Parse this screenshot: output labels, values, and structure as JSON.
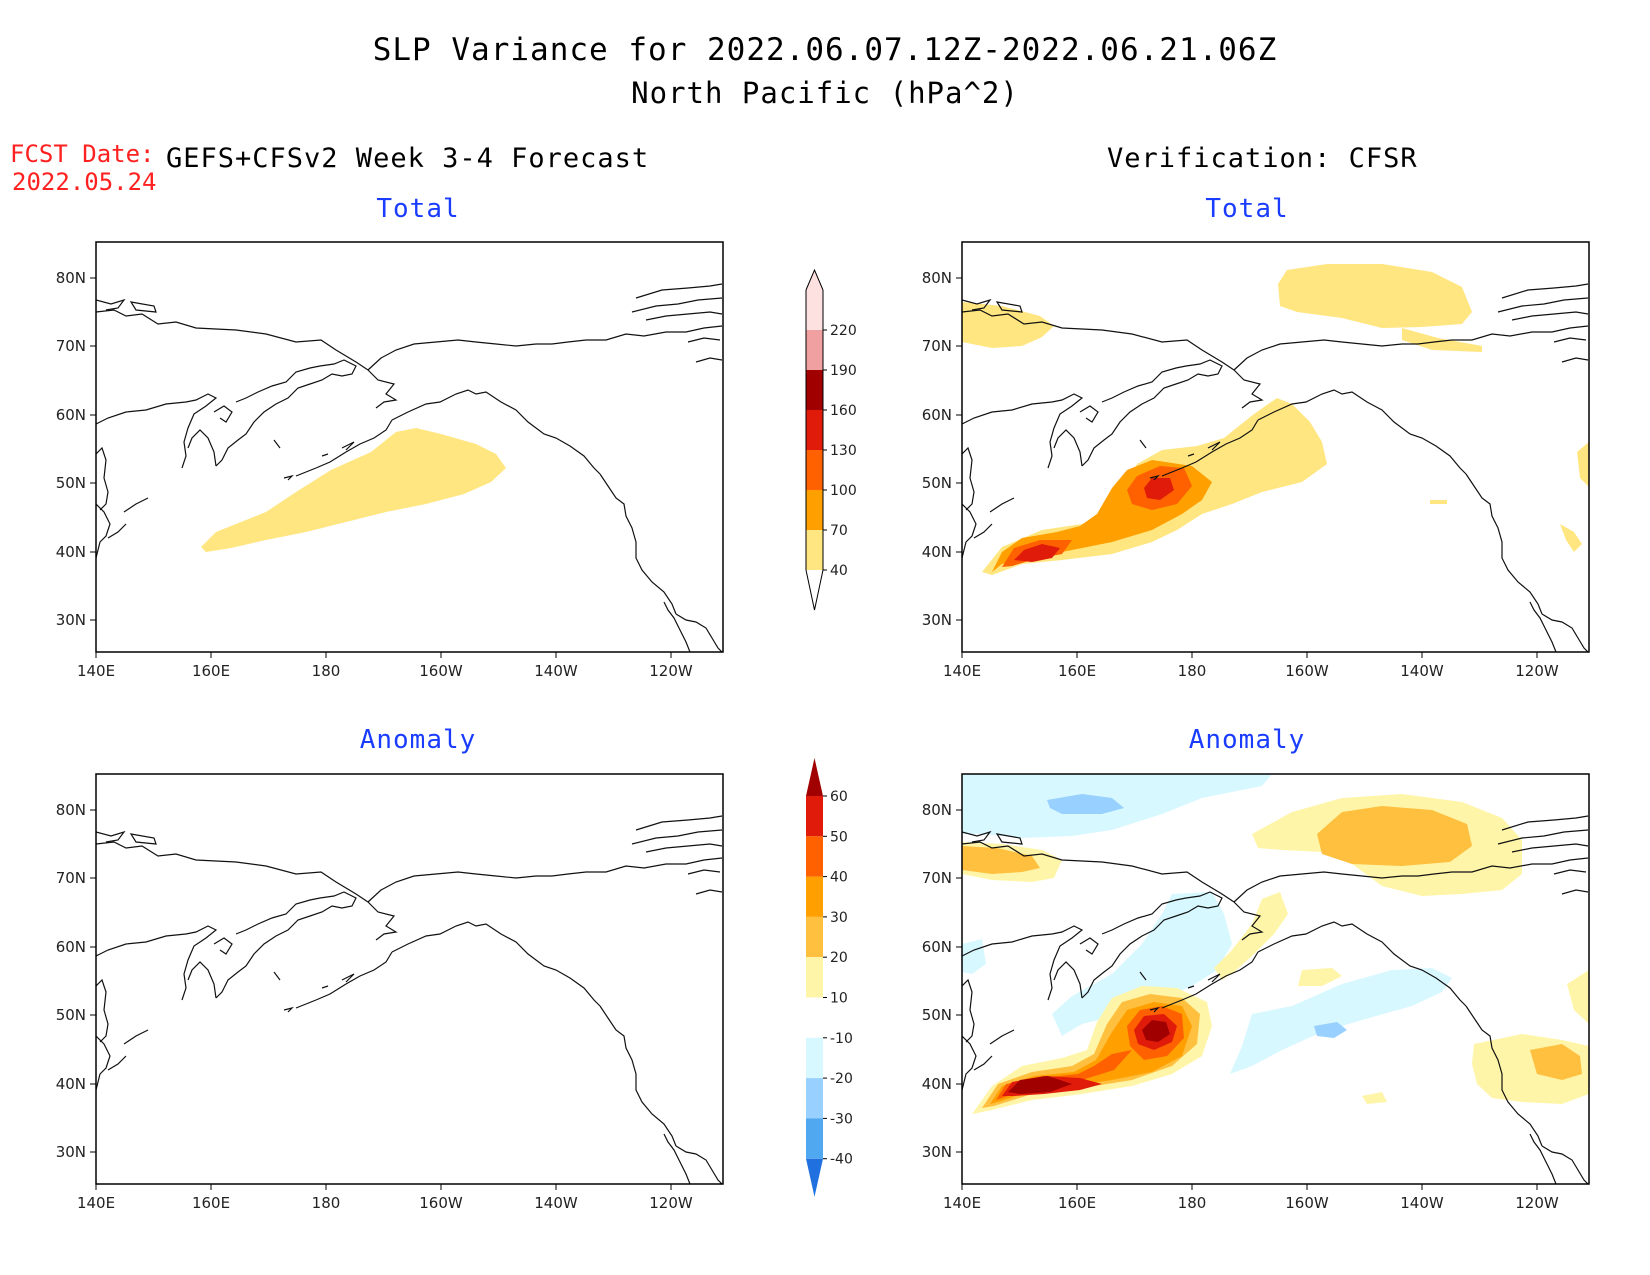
{
  "header": {
    "title": "SLP Variance for 2022.06.07.12Z-2022.06.21.06Z",
    "subtitle": "North Pacific (hPa^2)",
    "fcst_label": "FCST Date:",
    "fcst_value": "2022.05.24",
    "left_column": "GEFS+CFSv2 Week 3-4 Forecast",
    "right_column": "Verification: CFSR"
  },
  "panels": [
    {
      "id": "forecast-total",
      "title": "Total"
    },
    {
      "id": "verification-total",
      "title": "Total"
    },
    {
      "id": "forecast-anomaly",
      "title": "Anomaly"
    },
    {
      "id": "verification-anomaly",
      "title": "Anomaly"
    }
  ],
  "axes": {
    "lon_labels": [
      "140E",
      "160E",
      "180",
      "160W",
      "140W",
      "120W"
    ],
    "lat_labels": [
      "80N",
      "70N",
      "60N",
      "50N",
      "40N",
      "30N"
    ]
  },
  "colorbars": {
    "total": {
      "levels": [
        "40",
        "70",
        "100",
        "130",
        "160",
        "190",
        "220"
      ],
      "colors": [
        "#ffe680",
        "#ffa000",
        "#ff6000",
        "#e01b0a",
        "#a00000",
        "#f0a0a0",
        "#fde0e0"
      ]
    },
    "anomaly": {
      "levels": [
        "60",
        "50",
        "40",
        "30",
        "20",
        "10",
        "-10",
        "-20",
        "-30",
        "-40"
      ],
      "colors": [
        "#a00000",
        "#e01b0a",
        "#ff6000",
        "#ffa000",
        "#ffc040",
        "#fff5a8",
        "#ffffff",
        "#d8f8ff",
        "#98d0ff",
        "#50a8f0",
        "#2070e0"
      ]
    }
  }
}
